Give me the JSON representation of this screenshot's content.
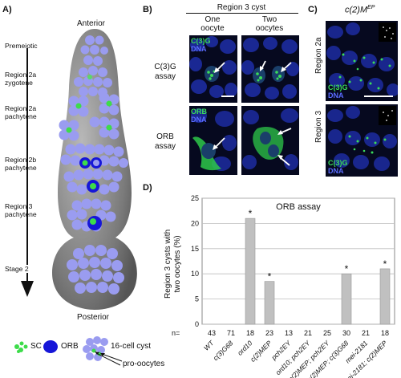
{
  "panel_a": {
    "label": "A)",
    "anterior": "Anterior",
    "posterior": "Posterior",
    "stages": {
      "premeiotic": "Premeiotic",
      "r2a_zygotene": [
        "Region 2a",
        "zygotene"
      ],
      "r2a_pachytene": [
        "Region 2a",
        "pachytene"
      ],
      "r2b_pachytene": [
        "Region 2b",
        "pachytene"
      ],
      "r3_pachytene": [
        "Region 3",
        "pachytene"
      ],
      "stage2": "Stage 2"
    },
    "legend": {
      "sc": "SC",
      "orb": "ORB",
      "cyst": "16-cell cyst",
      "pro_oocytes": "pro-oocytes"
    }
  },
  "panel_b": {
    "label": "B)",
    "header": "Region 3 cyst",
    "col1": [
      "One",
      "oocyte"
    ],
    "col2": [
      "Two",
      "oocytes"
    ],
    "row1": [
      "C(3)G",
      "assay"
    ],
    "row2": [
      "ORB",
      "assay"
    ],
    "c3g_tag": "C(3)G",
    "dna_tag": "DNA",
    "orb_tag": "ORB"
  },
  "panel_c": {
    "label": "C)",
    "title_main": "c(2)M",
    "title_sup": "EP",
    "row1": "Region 2a",
    "row2": "Region 3",
    "c3g_tag": "C(3)G",
    "dna_tag": "DNA"
  },
  "panel_d": {
    "label": "D)",
    "n_prefix": "n=",
    "ylabel": [
      "Region 3 cysts with",
      "two oocytes (%)"
    ]
  },
  "chart_data": {
    "type": "bar",
    "title": "ORB assay",
    "ylabel": "Region 3 cysts with two oocytes (%)",
    "ylim": [
      0,
      25
    ],
    "yticks": [
      0,
      5,
      10,
      15,
      20,
      25
    ],
    "grid": true,
    "categories": [
      "WT",
      "c(3)G^68",
      "ord^10",
      "c(2)M^EP",
      "pch2^EY",
      "ord^10; pch2^EY",
      "c(2)M^EP; pch2^EY",
      "c(2)M^EP; c(3)G^68",
      "mei-218^1",
      "mei-218^1; c(2)M^EP"
    ],
    "category_labels": [
      "WT",
      "c(3)G68",
      "ord10",
      "c(2)MEP",
      "pch2EY",
      "ord10; pch2EY",
      "c(2)MEP; pch2EY",
      "c(2)MEP; c(3)G68",
      "mei-2181",
      "mei-2181; c(2)MEP"
    ],
    "n": [
      "43",
      "71",
      "18",
      "23",
      "13",
      "21",
      "25",
      "30",
      "21",
      "18"
    ],
    "values": [
      0,
      0,
      21,
      8.5,
      0,
      0,
      0,
      10,
      0,
      11
    ],
    "significant": [
      "",
      "",
      "*",
      "*",
      "",
      "",
      "",
      "*",
      "",
      "*"
    ],
    "bar_color": "#c0c0c0"
  },
  "colors": {
    "orb_blue": "#1616d8",
    "cell_lavender": "#9a9cf0",
    "sc_green": "#3ddc4a",
    "germarium_grey": "#8a8a8a"
  }
}
